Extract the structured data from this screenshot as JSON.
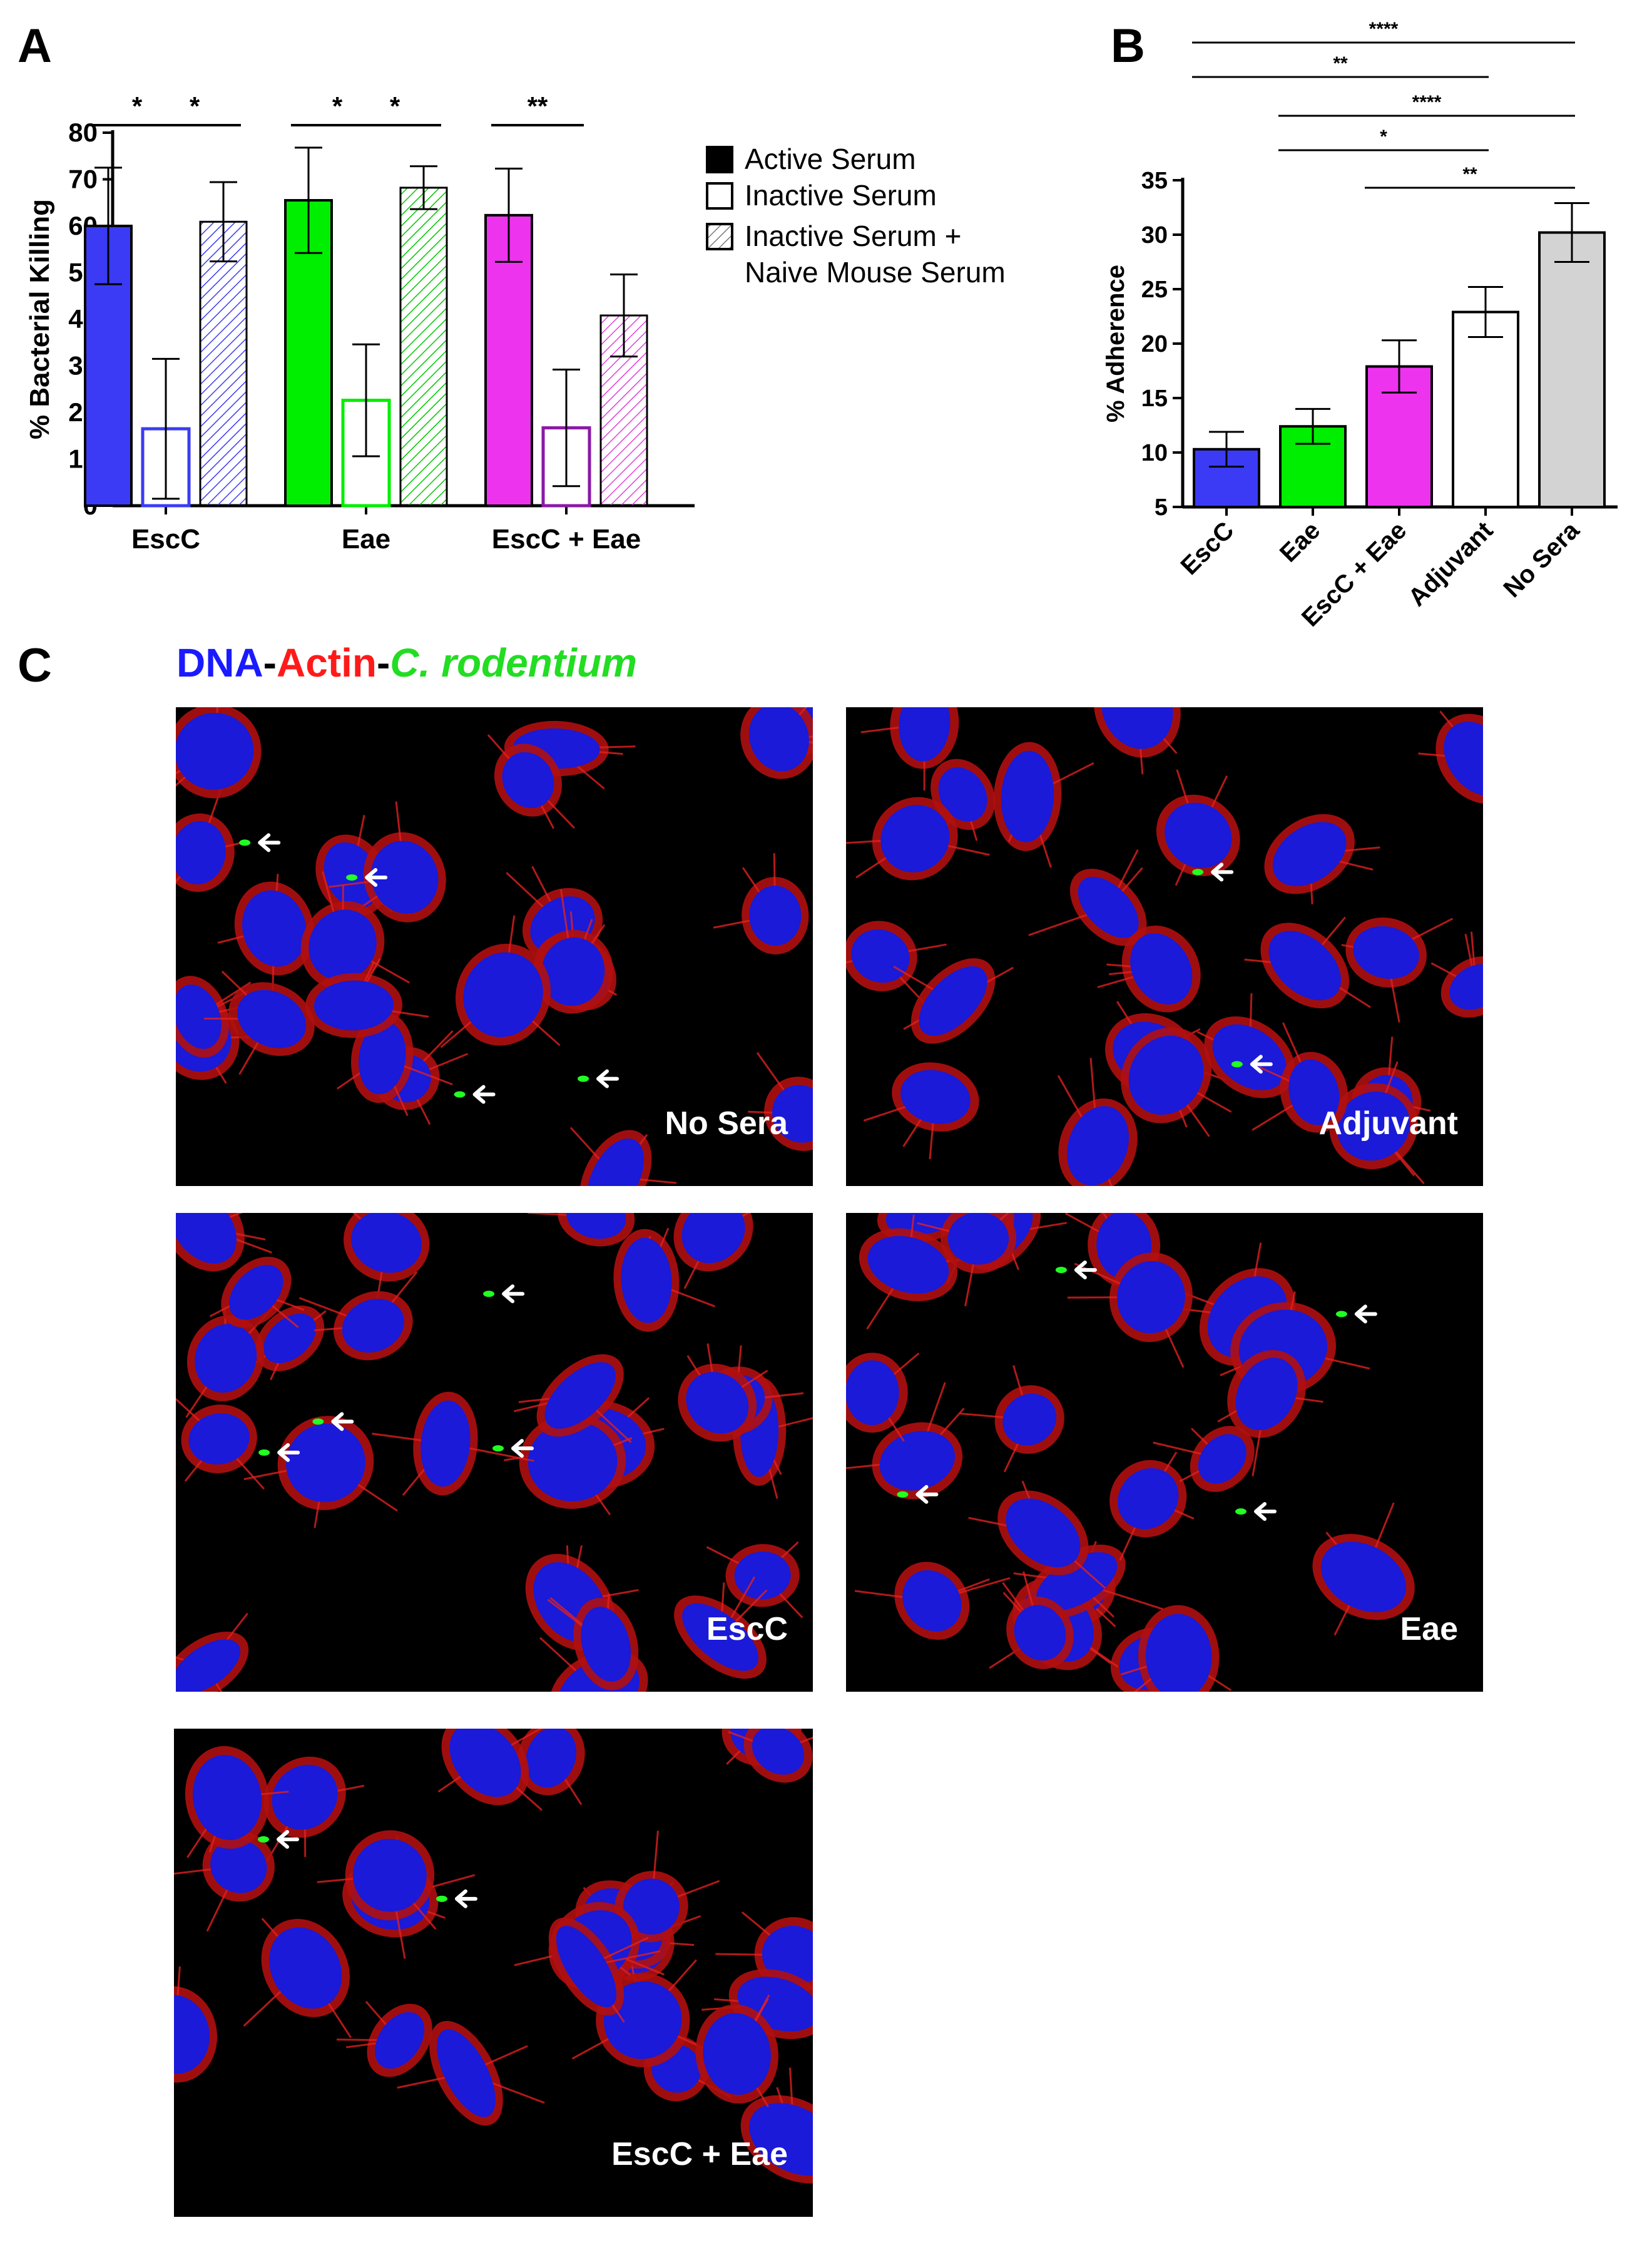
{
  "panel_labels": {
    "a": "A",
    "b": "B",
    "c": "C"
  },
  "chart_data": [
    {
      "type": "bar",
      "panel": "A",
      "title": "",
      "xlabel": "",
      "ylabel": "% Bacterial Killing",
      "ylim": [
        0,
        80
      ],
      "yticks": [
        "0",
        "10",
        "20",
        "30",
        "40",
        "50",
        "60",
        "70",
        "80"
      ],
      "categories": [
        "EscC",
        "Eae",
        "EscC + Eae"
      ],
      "series": [
        {
          "name": "Active Serum",
          "values": [
            60,
            65.5,
            62.3
          ],
          "errors": [
            12.5,
            11.3,
            10
          ],
          "fills": [
            "#3b3bf5",
            "#00ee00",
            "#ee33ee"
          ],
          "pattern": "solid"
        },
        {
          "name": "Inactive Serum",
          "values": [
            16.5,
            22.6,
            16.7
          ],
          "errors": [
            15,
            12,
            12.5
          ],
          "fills": [
            "#3b3bf5",
            "#00ee00",
            "#8a1aa6"
          ],
          "pattern": "outline"
        },
        {
          "name": "Inactive Serum + Naive Mouse Serum",
          "values": [
            60.9,
            68.2,
            40.8
          ],
          "errors": [
            8.5,
            4.6,
            8.8
          ],
          "fills": [
            "#3b3bf5",
            "#00ee00",
            "#ee33ee"
          ],
          "pattern": "hatched"
        }
      ],
      "legend_lines": [
        "Active Serum",
        "Inactive Serum",
        "Inactive Serum +",
        "Naive Mouse Serum"
      ],
      "significance": [
        {
          "category": 0,
          "from": 0,
          "to": 1,
          "label": "*"
        },
        {
          "category": 0,
          "from": 1,
          "to": 2,
          "label": "*"
        },
        {
          "category": 1,
          "from": 0,
          "to": 1,
          "label": "*"
        },
        {
          "category": 1,
          "from": 1,
          "to": 2,
          "label": "*"
        },
        {
          "category": 2,
          "from": 0,
          "to": 1,
          "label": "**"
        }
      ],
      "grid": false,
      "legend_position": "right"
    },
    {
      "type": "bar",
      "panel": "B",
      "title": "",
      "xlabel": "",
      "ylabel": "% Adherence",
      "ylim": [
        5,
        35
      ],
      "yticks": [
        "5",
        "10",
        "15",
        "20",
        "25",
        "30",
        "35"
      ],
      "categories": [
        "EscC",
        "Eae",
        "EscC + Eae",
        "Adjuvant",
        "No Sera"
      ],
      "values": [
        10.3,
        12.4,
        17.9,
        22.9,
        30.2
      ],
      "errors": [
        1.6,
        1.6,
        2.4,
        2.3,
        2.7
      ],
      "colors": [
        "#3b3bf5",
        "#00ee00",
        "#ee33ee",
        "#ffffff",
        "#d3d3d3"
      ],
      "significance": [
        {
          "from": 0,
          "to": 4,
          "label": "****"
        },
        {
          "from": 0,
          "to": 3,
          "label": "**"
        },
        {
          "from": 1,
          "to": 4,
          "label": "****"
        },
        {
          "from": 1,
          "to": 3,
          "label": "*"
        },
        {
          "from": 2,
          "to": 4,
          "label": "**"
        }
      ],
      "grid": false
    }
  ],
  "panel_c": {
    "caption": {
      "dna": "DNA",
      "sep1": "-",
      "actin": "Actin",
      "sep2": "-",
      "organism": "C. rodentium"
    },
    "caption_colors": {
      "dna": "#1a1aff",
      "actin": "#ff1a1a",
      "sep": "#000000",
      "organism": "#22dd22"
    },
    "images": [
      {
        "label": "No Sera"
      },
      {
        "label": "Adjuvant"
      },
      {
        "label": "EscC"
      },
      {
        "label": "Eae"
      },
      {
        "label": "EscC + Eae"
      }
    ]
  }
}
